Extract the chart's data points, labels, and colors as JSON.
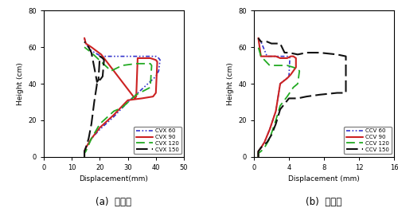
{
  "chart_a": {
    "title": "(a)  별록형",
    "xlabel": "Displacement(mm)",
    "ylabel": "Height (cm)",
    "xlim": [
      0,
      50
    ],
    "ylim": [
      0,
      80
    ],
    "xticks": [
      0,
      10,
      20,
      30,
      40,
      50
    ],
    "yticks": [
      0,
      20,
      40,
      60,
      80
    ],
    "series": [
      {
        "label": "CVX 60",
        "color": "#3333cc",
        "linestyle_key": "dash_dot_dot",
        "linewidth": 1.2,
        "x": [
          14.5,
          14.5,
          15.0,
          17.0,
          20.0,
          25.0,
          30.0,
          35.0,
          40.0,
          41.0,
          41.5,
          41.0,
          40.0,
          36.0,
          32.0,
          26.0,
          20.5,
          17.0,
          15.0,
          14.5
        ],
        "y": [
          0,
          3,
          5,
          10,
          15,
          22,
          30,
          37,
          44,
          47,
          53,
          54,
          55,
          55,
          55,
          55,
          55,
          58,
          62,
          65
        ]
      },
      {
        "label": "CVX 90",
        "color": "#cc2222",
        "linestyle_key": "solid",
        "linewidth": 1.5,
        "x": [
          14.5,
          14.5,
          15.0,
          17.0,
          20.0,
          25.0,
          30.0,
          35.0,
          39.0,
          40.0,
          40.5,
          40.0,
          38.0,
          33.5,
          33.0,
          32.5,
          20.5,
          17.0,
          15.0,
          14.5
        ],
        "y": [
          0,
          3,
          5,
          10,
          16,
          23,
          31,
          32,
          33,
          35,
          52,
          53,
          54,
          54,
          33,
          32,
          56,
          60,
          62,
          65
        ]
      },
      {
        "label": "CVX 120",
        "color": "#22aa22",
        "linestyle_key": "dashed",
        "linewidth": 1.3,
        "x": [
          14.5,
          14.5,
          15.0,
          17.0,
          20.0,
          25.0,
          28.0,
          33.0,
          38.0,
          38.5,
          38.0,
          33.0,
          28.0,
          24.0,
          20.5,
          17.0,
          14.5
        ],
        "y": [
          0,
          2,
          3,
          10,
          18,
          25,
          27,
          34,
          38,
          50,
          51,
          51,
          50,
          47,
          52,
          57,
          60
        ]
      },
      {
        "label": "CVX 150",
        "color": "#111111",
        "linestyle_key": "long_dash",
        "linewidth": 1.5,
        "x": [
          14.5,
          14.5,
          15.0,
          16.0,
          17.0,
          18.0,
          19.0,
          20.0,
          21.0,
          21.5,
          21.0,
          20.0,
          19.5,
          19.0,
          17.0,
          16.0,
          14.5
        ],
        "y": [
          0,
          3,
          5,
          10,
          18,
          30,
          40,
          42,
          44,
          53,
          54,
          55,
          42,
          41,
          57,
          60,
          63
        ]
      }
    ]
  },
  "chart_b": {
    "title": "(b)  오목형",
    "xlabel": "Displacement (mm)",
    "ylabel": "Height (cm)",
    "xlim": [
      0,
      16
    ],
    "ylim": [
      0,
      80
    ],
    "xticks": [
      0,
      4,
      8,
      12,
      16
    ],
    "yticks": [
      0,
      20,
      40,
      60,
      80
    ],
    "series": [
      {
        "label": "CCV 60",
        "color": "#3333cc",
        "linestyle_key": "dash_dot_dot",
        "linewidth": 1.2,
        "x": [
          0.5,
          0.5,
          0.8,
          1.2,
          1.8,
          2.5,
          3.0,
          3.5,
          4.0,
          4.1,
          4.0,
          3.5,
          2.5,
          1.5,
          0.8,
          0.5
        ],
        "y": [
          0,
          3,
          5,
          8,
          15,
          25,
          40,
          42,
          44,
          54,
          55,
          55,
          55,
          55,
          63,
          65
        ]
      },
      {
        "label": "CCV 90",
        "color": "#cc2222",
        "linestyle_key": "solid",
        "linewidth": 1.5,
        "x": [
          0.5,
          0.5,
          0.8,
          1.2,
          1.8,
          2.5,
          3.0,
          3.8,
          4.2,
          4.5,
          4.8,
          4.8,
          4.5,
          4.2,
          3.8,
          3.0,
          2.5,
          1.8,
          1.2,
          0.8,
          0.5
        ],
        "y": [
          0,
          3,
          5,
          8,
          15,
          25,
          40,
          43,
          45,
          47,
          49,
          54,
          55,
          55,
          54,
          54,
          55,
          55,
          55,
          55,
          65
        ]
      },
      {
        "label": "CCV 120",
        "color": "#22aa22",
        "linestyle_key": "dashed",
        "linewidth": 1.3,
        "x": [
          0.5,
          0.5,
          0.8,
          1.2,
          1.8,
          2.5,
          3.0,
          3.8,
          4.5,
          5.0,
          5.2,
          5.0,
          4.5,
          3.8,
          3.0,
          2.5,
          1.8,
          1.2,
          0.8,
          0.5
        ],
        "y": [
          0,
          2,
          3,
          5,
          10,
          20,
          28,
          33,
          38,
          40,
          47,
          48,
          49,
          50,
          50,
          50,
          50,
          53,
          55,
          60
        ]
      },
      {
        "label": "CCV 150",
        "color": "#111111",
        "linestyle_key": "long_dash",
        "linewidth": 1.5,
        "x": [
          0.5,
          0.5,
          0.8,
          1.0,
          1.5,
          2.0,
          2.5,
          3.0,
          4.0,
          5.0,
          6.0,
          7.5,
          9.5,
          10.5,
          10.5,
          9.5,
          7.5,
          6.0,
          5.0,
          4.0,
          3.5,
          3.0,
          2.0,
          1.5,
          0.8,
          0.5
        ],
        "y": [
          0,
          3,
          5,
          6,
          8,
          12,
          18,
          26,
          32,
          32,
          33,
          34,
          35,
          35,
          55,
          56,
          57,
          57,
          56,
          57,
          57,
          62,
          62,
          63,
          63,
          65
        ]
      }
    ]
  }
}
